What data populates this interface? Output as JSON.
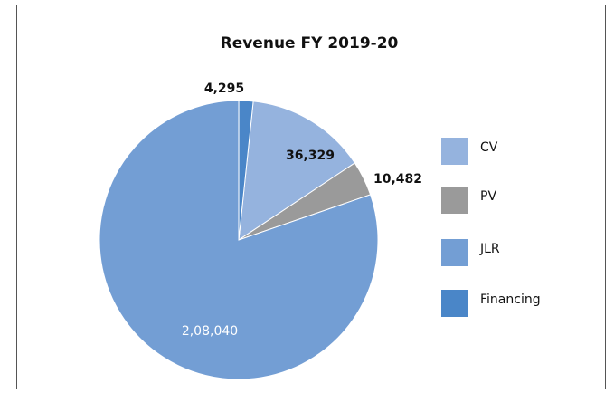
{
  "chart_data": {
    "type": "pie",
    "title": "Revenue FY 2019-20",
    "categories": [
      "CV",
      "PV",
      "JLR",
      "Financing"
    ],
    "values": [
      36329,
      10482,
      208040,
      4295
    ],
    "value_labels": [
      "36,329",
      "10,482",
      "2,08,040",
      "4,295"
    ],
    "colors": [
      "#95b3de",
      "#9a9a9a",
      "#739ed4",
      "#4a86c8"
    ],
    "legend": "right"
  }
}
